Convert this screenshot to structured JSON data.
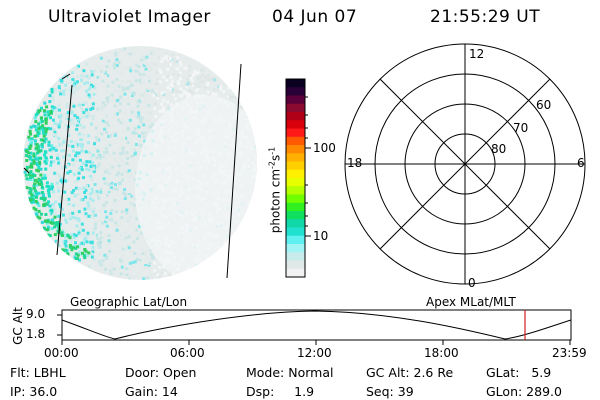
{
  "header": {
    "title": "Ultraviolet Imager",
    "date": "04 Jun 07",
    "time": "21:55:29 UT"
  },
  "colorbar": {
    "label": "photon cm",
    "label_sup1": "-2",
    "label_mid": "s",
    "label_sup2": "-1",
    "ticks": [
      "100",
      "10"
    ],
    "colors": [
      "#0a0020",
      "#2a0038",
      "#5a003a",
      "#8a0a30",
      "#b00018",
      "#d8000a",
      "#ff1818",
      "#ff5a00",
      "#ff8a00",
      "#ffb000",
      "#ffd000",
      "#fff000",
      "#e8ff00",
      "#b4ff00",
      "#70ff00",
      "#30f020",
      "#10e060",
      "#10d8a8",
      "#20e0d0",
      "#60f0f0",
      "#a0f4f4",
      "#c8ecec",
      "#e0e8e8",
      "#f2f2f2"
    ]
  },
  "polar": {
    "labels": {
      "top": "12",
      "bottom": "0",
      "left": "18",
      "right": "6"
    },
    "rings": [
      "60",
      "70",
      "80"
    ]
  },
  "timeline": {
    "geo_label": "Geographic Lat/Lon",
    "apex_label": "Apex  MLat/MLT",
    "axis_title": "GC Alt",
    "y_ticks": [
      "9.0",
      "1.8"
    ],
    "x_ticks": [
      "00:00",
      "06:00",
      "12:00",
      "18:00",
      "23:59"
    ],
    "marker_color": "#d02020"
  },
  "info": {
    "flt": "Flt: LBHL",
    "door": "Door: Open",
    "mode": "Mode: Normal",
    "gcalt": "GC Alt: 2.6 Re",
    "glat": "GLat:   5.9",
    "ip": "IP: 36.0",
    "gain": "Gain: 14",
    "dsp": "Dsp:     1.9",
    "seq": "Seq: 39",
    "glon": "GLon: 289.0"
  }
}
